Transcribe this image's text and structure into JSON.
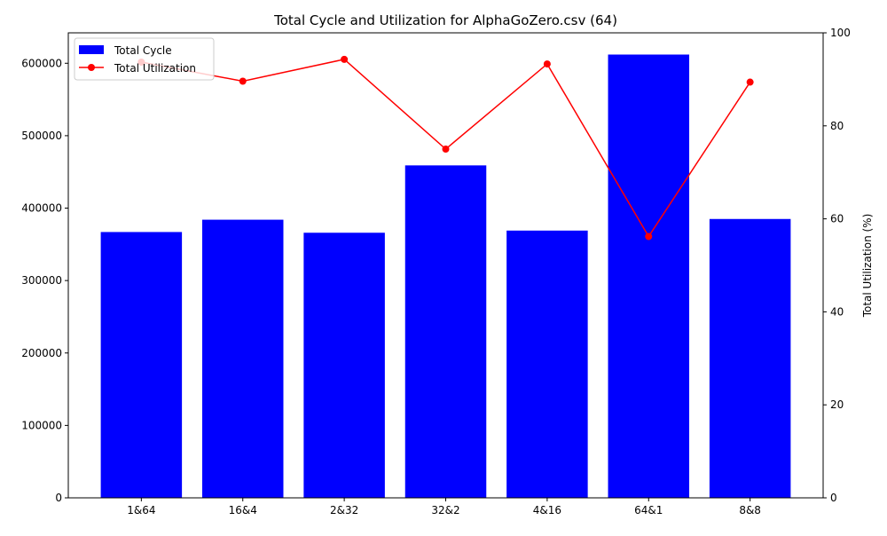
{
  "chart_data": {
    "type": "bar",
    "title": "Total Cycle and Utilization for AlphaGoZero.csv (64)",
    "xlabel": "",
    "categories": [
      "1&64",
      "16&4",
      "2&32",
      "32&2",
      "4&16",
      "64&1",
      "8&8"
    ],
    "series": [
      {
        "name": "Total Cycle",
        "type": "bar",
        "axis": "left",
        "color": "#0000ff",
        "values": [
          367000,
          384000,
          366000,
          459000,
          369000,
          612000,
          385000
        ]
      },
      {
        "name": "Total Utilization",
        "type": "line",
        "axis": "right",
        "color": "#ff0000",
        "marker": "circle",
        "values": [
          93.7,
          89.6,
          94.3,
          75.0,
          93.3,
          56.2,
          89.4
        ]
      }
    ],
    "left_axis": {
      "label": "",
      "ylim": [
        0,
        642000
      ],
      "ticks": [
        0,
        100000,
        200000,
        300000,
        400000,
        500000,
        600000
      ],
      "tick_labels": [
        "0",
        "100000",
        "200000",
        "300000",
        "400000",
        "500000",
        "600000"
      ]
    },
    "right_axis": {
      "label": "Total Utilization (%)",
      "ylim": [
        0,
        100
      ],
      "ticks": [
        0,
        20,
        40,
        60,
        80,
        100
      ],
      "tick_labels": [
        "0",
        "20",
        "40",
        "60",
        "80",
        "100"
      ]
    },
    "legend": {
      "position": "upper-left",
      "entries": [
        "Total Cycle",
        "Total Utilization"
      ]
    },
    "grid": false
  }
}
